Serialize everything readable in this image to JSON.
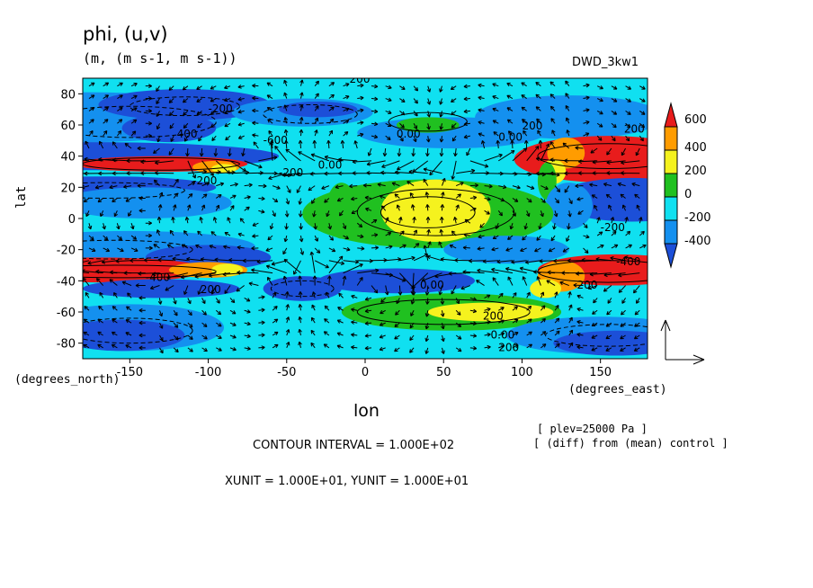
{
  "chart_data": {
    "type": "heatmap",
    "title": "phi, (u,v)",
    "subtitle": "(m, (m s-1, m s-1))",
    "experiment": "DWD_3kw1",
    "xlabel": "lon",
    "xunits": "(degrees_east)",
    "ylabel": "lat",
    "yunits": "(degrees_north)",
    "xlim": [
      -180,
      180
    ],
    "ylim": [
      -90,
      90
    ],
    "xticks": [
      "-150",
      "-100",
      "-50",
      "0",
      "50",
      "100",
      "150"
    ],
    "xtick_values": [
      -150,
      -100,
      -50,
      0,
      50,
      100,
      150
    ],
    "yticks": [
      "80",
      "60",
      "40",
      "20",
      "0",
      "-20",
      "-40",
      "-60",
      "-80"
    ],
    "ytick_values": [
      80,
      60,
      40,
      20,
      0,
      -20,
      -40,
      -60,
      -80
    ],
    "colorbar": {
      "labels": [
        "600",
        "400",
        "200",
        "0",
        "-200",
        "-400"
      ],
      "label_values": [
        600,
        400,
        200,
        0,
        -200,
        -400
      ],
      "colors": [
        "#e81c1c",
        "#ff9c00",
        "#f5f21e",
        "#20c020",
        "#10e0f0",
        "#1490ef",
        "#1c4fd8"
      ]
    },
    "contour_labels": [
      "200",
      "-200",
      "400",
      "-600",
      "0.00",
      "-200",
      "0.00",
      "200",
      "200",
      "0.00",
      "-200",
      "-400",
      "200",
      "-200",
      "-400",
      "0.00",
      "200",
      "200",
      "0.00",
      "200"
    ],
    "plev": "[ plev=25000 Pa ]",
    "diff": "[ (diff) from (mean) control ]",
    "contour_interval": "CONTOUR INTERVAL = 1.000E+02",
    "vector_units": "XUNIT = 1.000E+01, YUNIT = 1.000E+01",
    "colors": {
      "red": "#e81c1c",
      "orange": "#ff9c00",
      "yellow": "#f5f21e",
      "green": "#20c020",
      "cyan": "#10e0f0",
      "lightblue": "#1490ef",
      "blue": "#1c4fd8"
    }
  }
}
